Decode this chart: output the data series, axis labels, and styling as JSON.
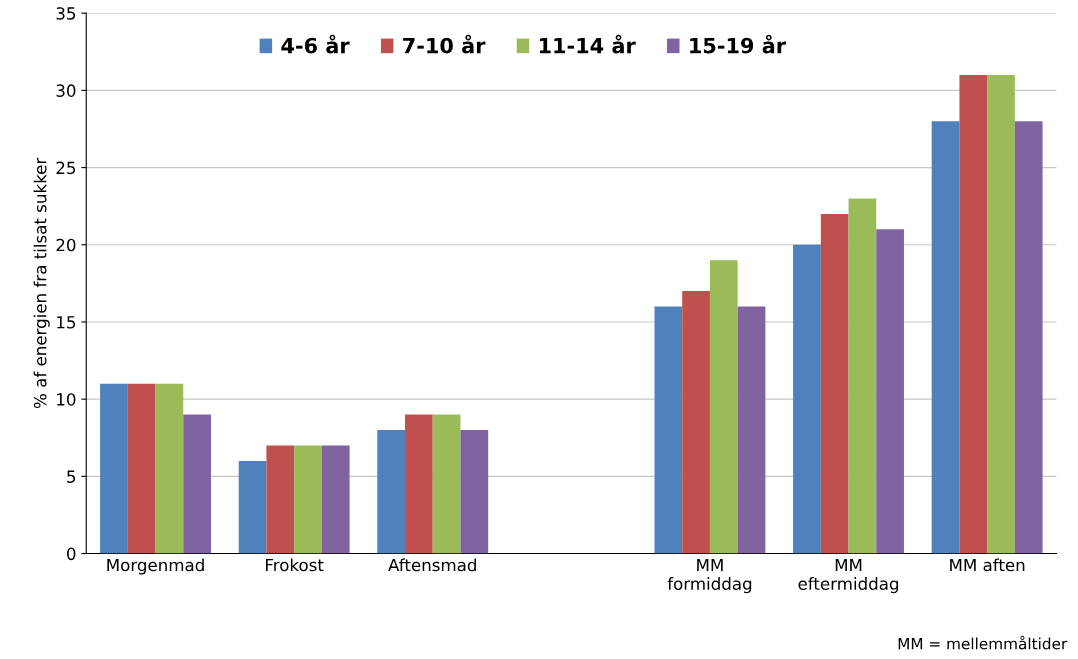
{
  "chart_data": {
    "type": "bar",
    "ylabel": "% af energien fra tilsat sukker",
    "categories": [
      "Morgenmad",
      "Frokost",
      "Aftensmad",
      null,
      "MM\nformiddag",
      "MM\neftermiddag",
      "MM aften"
    ],
    "series": [
      {
        "name": "4-6 år",
        "color": "#4f81bd",
        "values": [
          11,
          6,
          8,
          null,
          16,
          20,
          28
        ]
      },
      {
        "name": "7-10 år",
        "color": "#c0504d",
        "values": [
          11,
          7,
          9,
          null,
          17,
          22,
          31
        ]
      },
      {
        "name": "11-14 år",
        "color": "#9bbb59",
        "values": [
          11,
          7,
          9,
          null,
          19,
          23,
          31
        ]
      },
      {
        "name": "15-19 år",
        "color": "#8064a2",
        "values": [
          9,
          7,
          8,
          null,
          16,
          21,
          28
        ]
      }
    ],
    "ylim": [
      0,
      35
    ],
    "yticks": [
      0,
      5,
      10,
      15,
      20,
      25,
      30,
      35
    ],
    "grid": "y",
    "legend": "top",
    "annotations": [
      "MM = mellemmåltider"
    ]
  }
}
